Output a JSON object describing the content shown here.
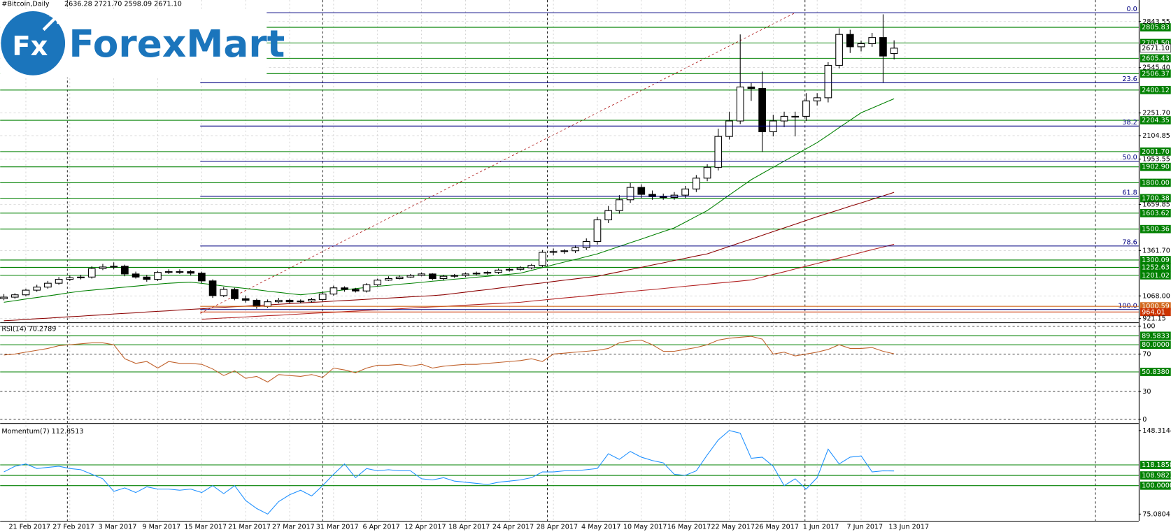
{
  "logo": {
    "mark": "Fx",
    "text": "ForexMart"
  },
  "chart_data": [
    {
      "type": "candlestick",
      "title": "#Bitcoin,Daily",
      "ohlc_label": "2636.28 2721.70 2598.09 2671.10",
      "categories": [
        null,
        null,
        "21 Feb 2017",
        null,
        null,
        null,
        "27 Feb 2017",
        null,
        null,
        null,
        "3 Mar 2017",
        null,
        null,
        null,
        "9 Mar 2017",
        null,
        null,
        null,
        "15 Mar 2017",
        null,
        null,
        null,
        "21 Mar 2017",
        null,
        null,
        null,
        "27 Mar 2017",
        null,
        null,
        null,
        "31 Mar 2017",
        null,
        null,
        null,
        "6 Apr 2017",
        null,
        null,
        null,
        "12 Apr 2017",
        null,
        null,
        null,
        "18 Apr 2017",
        null,
        null,
        null,
        "24 Apr 2017",
        null,
        null,
        null,
        "28 Apr 2017",
        null,
        null,
        null,
        "4 May 2017",
        null,
        null,
        null,
        "10 May 2017",
        null,
        null,
        null,
        "16 May 2017",
        null,
        null,
        null,
        "22 May 2017",
        null,
        null,
        null,
        "26 May 2017",
        null,
        null,
        null,
        "1 Jun 2017",
        null,
        null,
        null,
        "7 Jun 2017",
        null,
        null,
        null,
        "13 Jun 2017"
      ],
      "open": [
        1050,
        1060,
        1075,
        1105,
        1125,
        1150,
        1175,
        1185,
        1190,
        1245,
        1255,
        1260,
        1210,
        1190,
        1175,
        1220,
        1225,
        1225,
        1215,
        1165,
        1070,
        1110,
        1050,
        1040,
        1000,
        1030,
        1040,
        1030,
        1035,
        1045,
        1080,
        1120,
        1110,
        1100,
        1140,
        1170,
        1180,
        1190,
        1200,
        1210,
        1180,
        1195,
        1200,
        1210,
        1215,
        1220,
        1235,
        1240,
        1250,
        1265,
        1350,
        1355,
        1360,
        1380,
        1420,
        1560,
        1620,
        1690,
        1770,
        1725,
        1710,
        1705,
        1720,
        1760,
        1830,
        1900,
        2100,
        2200,
        2420,
        2410,
        2130,
        2200,
        2230,
        2230,
        2330,
        2350,
        2560,
        2760,
        2680,
        2700,
        2740,
        2636.28,
        null
      ],
      "high": [
        1080,
        1085,
        1115,
        1140,
        1165,
        1190,
        1200,
        1205,
        1260,
        1275,
        1285,
        1270,
        1225,
        1205,
        1230,
        1240,
        1240,
        1235,
        1225,
        1175,
        1125,
        1120,
        1070,
        1050,
        1045,
        1055,
        1050,
        1045,
        1055,
        1090,
        1135,
        1130,
        1120,
        1150,
        1180,
        1195,
        1200,
        1210,
        1220,
        1215,
        1205,
        1210,
        1220,
        1225,
        1230,
        1245,
        1250,
        1260,
        1275,
        1365,
        1375,
        1370,
        1395,
        1440,
        1580,
        1650,
        1720,
        1800,
        1790,
        1750,
        1730,
        1740,
        1780,
        1850,
        1920,
        2150,
        2260,
        2760,
        2450,
        2520,
        2240,
        2260,
        2260,
        2380,
        2380,
        2580,
        2800,
        2790,
        2720,
        2770,
        2890,
        2721.7,
        null
      ],
      "low": [
        1040,
        1050,
        1065,
        1095,
        1115,
        1140,
        1165,
        1175,
        1180,
        1235,
        1240,
        1195,
        1180,
        1160,
        1165,
        1210,
        1210,
        1200,
        1150,
        1055,
        1060,
        1040,
        1025,
        985,
        990,
        1020,
        1020,
        1020,
        1025,
        1035,
        1070,
        1095,
        1090,
        1090,
        1130,
        1165,
        1175,
        1185,
        1195,
        1170,
        1170,
        1185,
        1190,
        1200,
        1205,
        1210,
        1225,
        1230,
        1240,
        1255,
        1330,
        1340,
        1345,
        1365,
        1400,
        1540,
        1600,
        1670,
        1700,
        1690,
        1690,
        1690,
        1700,
        1740,
        1810,
        1880,
        2080,
        2180,
        2330,
        2000,
        2100,
        2160,
        2100,
        2200,
        2300,
        2320,
        2540,
        2640,
        2650,
        2680,
        2450,
        2598.09,
        null
      ],
      "close": [
        1060,
        1075,
        1105,
        1125,
        1150,
        1175,
        1185,
        1190,
        1245,
        1255,
        1260,
        1210,
        1190,
        1175,
        1220,
        1225,
        1225,
        1215,
        1165,
        1070,
        1110,
        1050,
        1040,
        1000,
        1030,
        1040,
        1030,
        1035,
        1045,
        1080,
        1120,
        1110,
        1100,
        1140,
        1170,
        1180,
        1190,
        1200,
        1210,
        1180,
        1195,
        1200,
        1210,
        1215,
        1220,
        1235,
        1240,
        1250,
        1265,
        1350,
        1355,
        1360,
        1380,
        1420,
        1560,
        1620,
        1690,
        1770,
        1725,
        1710,
        1705,
        1720,
        1760,
        1830,
        1900,
        2100,
        2200,
        2420,
        2410,
        2130,
        2200,
        2230,
        2230,
        2330,
        2350,
        2560,
        2760,
        2680,
        2700,
        2740,
        2620,
        2671.1,
        null
      ],
      "bull_color": "#ffffff",
      "bear_color": "#000000",
      "series": [
        {
          "color": "#008000",
          "values": [
            1027,
            1037,
            1048,
            1058,
            1068,
            1078,
            1089,
            1099,
            1105,
            1112,
            1118,
            1125,
            1131,
            1138,
            1144,
            1150,
            1154,
            1157,
            1149,
            1141,
            1132,
            1124,
            1116,
            1108,
            1099,
            1091,
            1083,
            1075,
            1083,
            1091,
            1099,
            1107,
            1115,
            1123,
            1130,
            1136,
            1143,
            1149,
            1156,
            1163,
            1169,
            1176,
            1182,
            1189,
            1195,
            1202,
            1208,
            1215,
            1233,
            1251,
            1269,
            1287,
            1304,
            1322,
            1340,
            1364,
            1388,
            1412,
            1436,
            1460,
            1484,
            1508,
            1545,
            1583,
            1620,
            1670,
            1720,
            1770,
            1820,
            1860,
            1900,
            1940,
            1980,
            2020,
            2060,
            2108,
            2157,
            2205,
            2253,
            2283,
            2314,
            2344,
            null
          ]
        },
        {
          "color": "#8b0000",
          "values": [
            907,
            911,
            916,
            920,
            924,
            929,
            933,
            937,
            942,
            946,
            951,
            955,
            959,
            964,
            968,
            972,
            977,
            981,
            985,
            990,
            994,
            998,
            1002,
            1006,
            1010,
            1014,
            1018,
            1022,
            1026,
            1030,
            1034,
            1038,
            1042,
            1046,
            1050,
            1054,
            1058,
            1062,
            1066,
            1070,
            1075,
            1084,
            1092,
            1101,
            1109,
            1118,
            1127,
            1135,
            1144,
            1152,
            1161,
            1170,
            1178,
            1187,
            1195,
            1210,
            1224,
            1239,
            1253,
            1268,
            1282,
            1297,
            1311,
            1326,
            1340,
            1364,
            1388,
            1412,
            1436,
            1460,
            1484,
            1508,
            1532,
            1556,
            1580,
            1603,
            1625,
            1648,
            1670,
            1693,
            1715,
            1738,
            null
          ]
        },
        {
          "color": "#b22222",
          "values": [
            null,
            null,
            null,
            null,
            null,
            null,
            null,
            null,
            null,
            null,
            null,
            null,
            null,
            null,
            null,
            null,
            null,
            null,
            917,
            921,
            925,
            928,
            932,
            936,
            940,
            943,
            947,
            951,
            955,
            959,
            962,
            966,
            970,
            974,
            978,
            981,
            985,
            989,
            993,
            997,
            1000,
            1004,
            1008,
            1012,
            1016,
            1019,
            1023,
            1027,
            1034,
            1041,
            1048,
            1055,
            1061,
            1068,
            1075,
            1082,
            1089,
            1096,
            1103,
            1109,
            1116,
            1123,
            1130,
            1137,
            1144,
            1151,
            1157,
            1164,
            1171,
            1189,
            1207,
            1224,
            1242,
            1260,
            1278,
            1296,
            1313,
            1331,
            1349,
            1367,
            1384,
            1402,
            null
          ]
        }
      ],
      "ylim": [
        897,
        2973
      ],
      "yticks": [
        2843.55,
        {
          "value": 2545.4,
          "label": "2545.40"
        },
        {
          "value": 2251.7,
          "label": "2251.70"
        },
        2104.85,
        1953.55,
        1659.85,
        {
          "value": 1361.7,
          "label": "1361.70"
        },
        {
          "value": 1068,
          "label": "1068.00"
        },
        921.15
      ],
      "grid": true,
      "level_color": "#008000",
      "levels": [
        2805.83,
        {
          "value": 2704.5,
          "label": "2704.50"
        },
        2605.43,
        2506.37,
        2400.12,
        2204.35,
        {
          "value": 2001.7,
          "label": "2001.70"
        },
        {
          "value": 1902.9,
          "label": "1902.90"
        },
        {
          "value": 1800,
          "label": "1800.00"
        },
        1700.38,
        1603.62,
        1500.36,
        1300.09,
        1252.63,
        1201.02
      ],
      "price_marks": [
        {
          "value": 1000.59,
          "color": "#d2691e"
        },
        {
          "value": 964.01,
          "color": "#cc3300"
        }
      ],
      "last_price": {
        "value": 2671.1,
        "label": "2671.10"
      },
      "fibonacci": {
        "color": "#000080",
        "levels": [
          {
            "value": 0,
            "label": "0.0",
            "price": 2900
          },
          {
            "value": 23.6,
            "price": 2447
          },
          {
            "value": 38.2,
            "price": 2167
          },
          {
            "value": 50,
            "label": "50.0",
            "price": 1940
          },
          {
            "value": 61.8,
            "price": 1713
          },
          {
            "value": 78.6,
            "price": 1391
          },
          {
            "value": 100,
            "label": "100.0",
            "price": 980
          }
        ]
      }
    },
    {
      "type": "line",
      "title": "RSI(14) 70.2789",
      "color": "#c0612b",
      "values": [
        69,
        70,
        72,
        74,
        76,
        79,
        80,
        81,
        82,
        82,
        80,
        65,
        60,
        62,
        55,
        62,
        60,
        60,
        59,
        54,
        47,
        52,
        44,
        46,
        40,
        48,
        47,
        46,
        48,
        45,
        55,
        53,
        50,
        55,
        58,
        58,
        59,
        57,
        59,
        55,
        57,
        58,
        59,
        59,
        60,
        61,
        62,
        63,
        65,
        62,
        70,
        71,
        72,
        73,
        74,
        76,
        82,
        84,
        85,
        80,
        73,
        73,
        75,
        77,
        80,
        85,
        87,
        88,
        89,
        86,
        70,
        72,
        68,
        70,
        72,
        75,
        80,
        76,
        76,
        77,
        73,
        70.2789,
        null
      ],
      "ylim": [
        0,
        100
      ],
      "yticks": [
        100,
        70,
        30,
        0
      ],
      "grid": true,
      "level_color": "#008000",
      "levels": [
        89.5833,
        {
          "value": 80,
          "label": "80.0000"
        },
        {
          "value": 50.838,
          "label": "50.8380"
        }
      ]
    },
    {
      "type": "line",
      "title": "Momentum(7) 112.8513",
      "color": "#1e90ff",
      "values": [
        112,
        117,
        119,
        115,
        116,
        117,
        115,
        114,
        110,
        106,
        95,
        98,
        94,
        99,
        97,
        97,
        96,
        97,
        94,
        100,
        93,
        100,
        87,
        80,
        75.0804,
        86,
        92,
        96,
        91,
        100,
        110,
        119,
        107,
        115,
        113,
        114,
        113,
        113,
        106,
        105,
        107,
        104,
        103,
        102,
        101,
        103,
        104,
        105,
        107,
        112,
        112,
        113,
        113,
        114,
        115,
        128,
        123,
        130,
        125,
        122,
        120,
        110,
        109,
        113,
        127,
        140,
        148.3144,
        146,
        124,
        125,
        117,
        100,
        106,
        97,
        107,
        132,
        119,
        125,
        126,
        112,
        113,
        112.8513,
        null
      ],
      "ylim": [
        75.0804,
        148.3144
      ],
      "yticks": [
        148.3144,
        75.0804
      ],
      "grid": false,
      "level_color": "#008000",
      "levels": [
        118.1858,
        108.9823,
        {
          "value": 100,
          "label": "100.0000"
        }
      ]
    }
  ]
}
